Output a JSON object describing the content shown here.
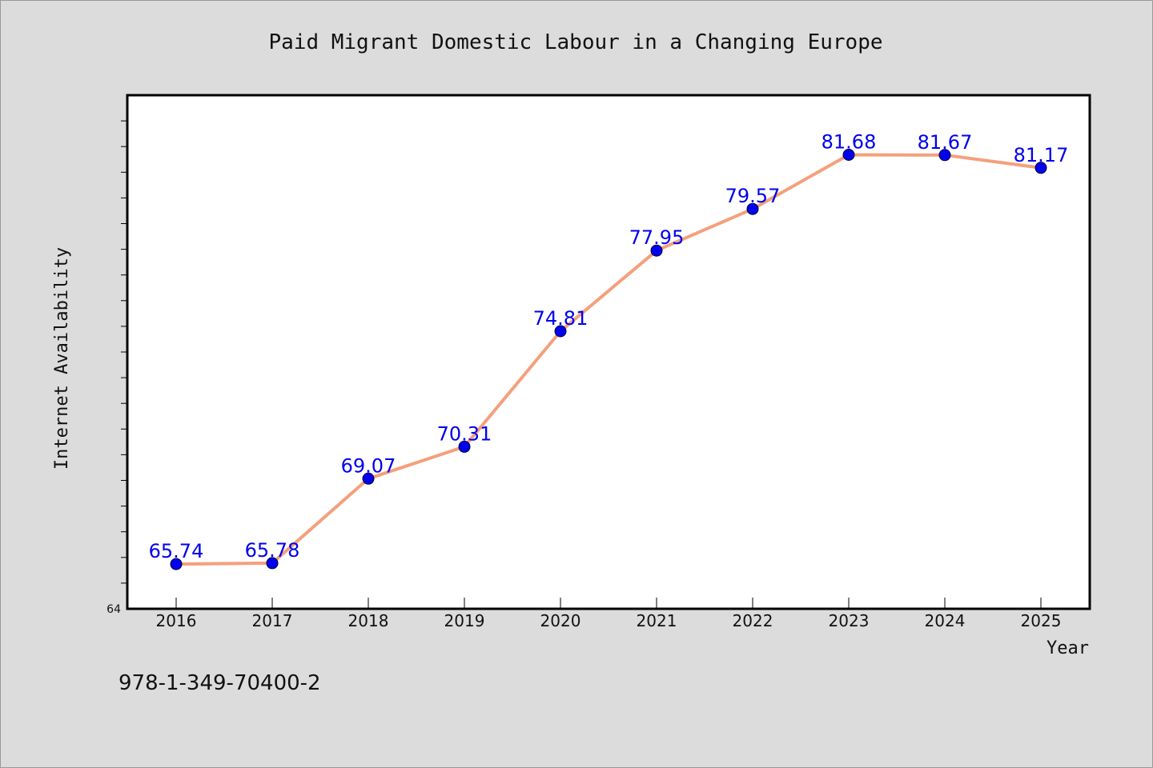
{
  "chart_data": {
    "type": "line",
    "title": "Paid Migrant Domestic Labour in a Changing Europe",
    "xlabel": "Year",
    "ylabel": "Internet Availability",
    "x": [
      "2016",
      "2017",
      "2018",
      "2019",
      "2020",
      "2021",
      "2022",
      "2023",
      "2024",
      "2025"
    ],
    "series": [
      {
        "values": [
          65.74,
          65.78,
          69.07,
          70.31,
          74.81,
          77.95,
          79.57,
          81.68,
          81.67,
          81.17
        ],
        "data_labels": [
          "65.74",
          "65.78",
          "69.07",
          "70.31",
          "74.81",
          "77.95",
          "79.57",
          "81.68",
          "81.67",
          "81.17"
        ],
        "line_color": "#f4a07c",
        "marker_color": "#0000ee"
      }
    ],
    "ylim": [
      64,
      84
    ],
    "y_tick_labels": [
      "64"
    ],
    "grid": false,
    "legend": "none"
  },
  "footer": {
    "isbn": "978-1-349-70400-2"
  },
  "colors": {
    "background": "#dcdcdc",
    "plot_area": "#ffffff",
    "label_blue": "#0000ee"
  }
}
